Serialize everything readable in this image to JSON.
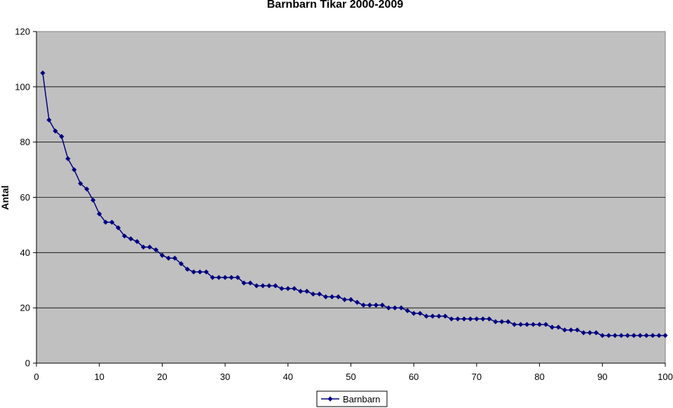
{
  "chart_data": {
    "type": "line",
    "title": "Barnbarn Tikar 2000-2009",
    "xlabel": "",
    "ylabel": "Antal",
    "xlim": [
      0,
      100
    ],
    "ylim": [
      0,
      120
    ],
    "x_ticks": [
      "0",
      "10",
      "20",
      "30",
      "40",
      "50",
      "60",
      "70",
      "80",
      "90",
      "100"
    ],
    "y_ticks": [
      "0",
      "20",
      "40",
      "60",
      "80",
      "100",
      "120"
    ],
    "grid": "horizontal",
    "legend_position": "bottom",
    "plot_background": "#c0c0c0",
    "series": [
      {
        "name": "Barnbarn",
        "color": "#000080",
        "marker": "diamond",
        "x": [
          1,
          2,
          3,
          4,
          5,
          6,
          7,
          8,
          9,
          10,
          11,
          12,
          13,
          14,
          15,
          16,
          17,
          18,
          19,
          20,
          21,
          22,
          23,
          24,
          25,
          26,
          27,
          28,
          29,
          30,
          31,
          32,
          33,
          34,
          35,
          36,
          37,
          38,
          39,
          40,
          41,
          42,
          43,
          44,
          45,
          46,
          47,
          48,
          49,
          50,
          51,
          52,
          53,
          54,
          55,
          56,
          57,
          58,
          59,
          60,
          61,
          62,
          63,
          64,
          65,
          66,
          67,
          68,
          69,
          70,
          71,
          72,
          73,
          74,
          75,
          76,
          77,
          78,
          79,
          80,
          81,
          82,
          83,
          84,
          85,
          86,
          87,
          88,
          89,
          90,
          91,
          92,
          93,
          94,
          95,
          96,
          97,
          98,
          99,
          100
        ],
        "values": [
          105,
          88,
          84,
          82,
          74,
          70,
          65,
          63,
          59,
          54,
          51,
          51,
          49,
          46,
          45,
          44,
          42,
          42,
          41,
          39,
          38,
          38,
          36,
          34,
          33,
          33,
          33,
          31,
          31,
          31,
          31,
          31,
          29,
          29,
          28,
          28,
          28,
          28,
          27,
          27,
          27,
          26,
          26,
          25,
          25,
          24,
          24,
          24,
          23,
          23,
          22,
          21,
          21,
          21,
          21,
          20,
          20,
          20,
          19,
          18,
          18,
          17,
          17,
          17,
          17,
          16,
          16,
          16,
          16,
          16,
          16,
          16,
          15,
          15,
          15,
          14,
          14,
          14,
          14,
          14,
          14,
          13,
          13,
          12,
          12,
          12,
          11,
          11,
          11,
          10,
          10,
          10,
          10,
          10,
          10,
          10,
          10,
          10,
          10,
          10
        ]
      }
    ]
  }
}
